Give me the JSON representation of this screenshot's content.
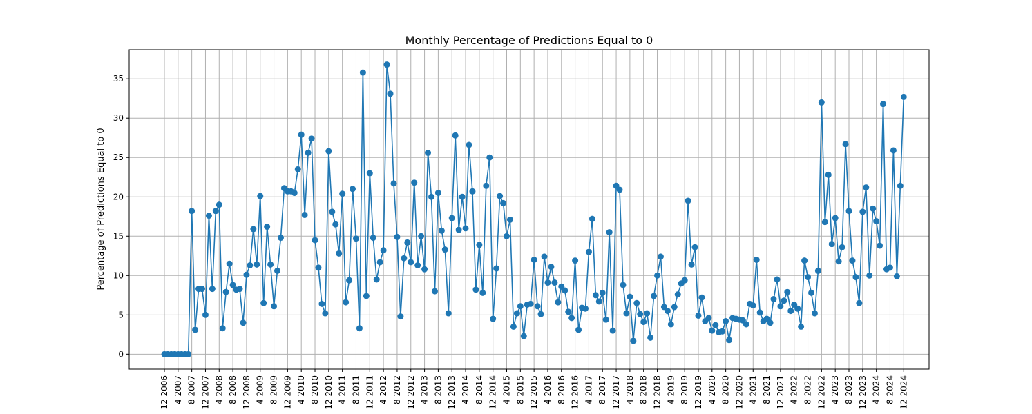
{
  "chart_data": {
    "type": "line",
    "title": "Monthly Percentage of Predictions Equal to 0",
    "xlabel": "",
    "ylabel": "Percentage of Predictions Equal to 0",
    "ylim": [
      -1.9,
      38.7
    ],
    "y_ticks": [
      0,
      5,
      10,
      15,
      20,
      25,
      30,
      35
    ],
    "grid": true,
    "line_color": "#1f77b4",
    "x_start": "12 2006",
    "x_ticks": [
      "12 2006",
      "4 2007",
      "8 2007",
      "12 2007",
      "4 2008",
      "8 2008",
      "12 2008",
      "4 2009",
      "8 2009",
      "12 2009",
      "4 2010",
      "8 2010",
      "12 2010",
      "4 2011",
      "8 2011",
      "12 2011",
      "4 2012",
      "8 2012",
      "12 2012",
      "4 2013",
      "8 2013",
      "12 2013",
      "4 2014",
      "8 2014",
      "12 2014",
      "4 2015",
      "8 2015",
      "12 2015",
      "4 2016",
      "8 2016",
      "12 2016",
      "4 2017",
      "8 2017",
      "12 2017",
      "4 2018",
      "8 2018",
      "12 2018",
      "4 2019",
      "8 2019",
      "12 2019",
      "4 2020",
      "8 2020",
      "12 2020",
      "4 2021",
      "8 2021",
      "12 2021",
      "4 2022",
      "8 2022",
      "12 2022",
      "4 2023",
      "8 2023",
      "12 2023",
      "4 2024",
      "8 2024",
      "12 2024"
    ],
    "values": [
      0,
      0,
      0,
      0,
      0,
      0,
      0,
      0,
      18.2,
      3.1,
      8.3,
      8.3,
      5.0,
      17.6,
      8.3,
      18.2,
      19.0,
      3.3,
      7.9,
      11.5,
      8.8,
      8.2,
      8.3,
      4.0,
      10.1,
      11.3,
      15.9,
      11.4,
      20.1,
      6.5,
      16.2,
      11.4,
      6.1,
      10.6,
      14.8,
      21.1,
      20.7,
      20.7,
      20.5,
      23.5,
      27.9,
      17.7,
      25.6,
      27.4,
      14.5,
      11.0,
      6.4,
      5.2,
      25.8,
      18.1,
      16.5,
      12.8,
      20.4,
      6.6,
      9.4,
      21.0,
      14.7,
      3.3,
      35.8,
      7.4,
      23.0,
      14.8,
      9.5,
      11.7,
      13.2,
      36.8,
      33.1,
      21.7,
      14.9,
      4.8,
      12.2,
      14.2,
      11.7,
      21.8,
      11.3,
      15.0,
      10.8,
      25.6,
      20.0,
      8.0,
      20.5,
      15.7,
      13.3,
      5.2,
      17.3,
      27.8,
      15.8,
      20.0,
      16.0,
      26.6,
      20.7,
      8.2,
      13.9,
      7.8,
      21.4,
      25.0,
      4.5,
      10.9,
      20.1,
      19.2,
      15.0,
      17.1,
      3.5,
      5.2,
      6.1,
      2.3,
      6.3,
      6.4,
      12.0,
      6.1,
      5.1,
      12.4,
      9.1,
      11.1,
      9.1,
      6.6,
      8.6,
      8.1,
      5.4,
      4.6,
      11.9,
      3.1,
      5.9,
      5.8,
      13.0,
      17.2,
      7.5,
      6.7,
      7.8,
      4.4,
      15.5,
      3.0,
      21.4,
      20.9,
      8.8,
      5.2,
      7.3,
      1.7,
      6.5,
      5.1,
      4.1,
      5.2,
      2.1,
      7.4,
      10.0,
      12.4,
      6.0,
      5.5,
      3.8,
      6.0,
      7.6,
      9.0,
      9.4,
      19.5,
      11.4,
      13.6,
      4.9,
      7.2,
      4.2,
      4.6,
      3.0,
      3.7,
      2.8,
      2.9,
      4.2,
      1.8,
      4.6,
      4.5,
      4.4,
      4.3,
      3.8,
      6.4,
      6.2,
      12.0,
      5.3,
      4.2,
      4.5,
      4.0,
      7.0,
      9.5,
      6.1,
      6.8,
      7.9,
      5.5,
      6.3,
      5.8,
      3.5,
      11.9,
      9.8,
      7.8,
      5.2,
      10.6,
      32.0,
      16.8,
      22.8,
      14.0,
      17.3,
      11.8,
      13.6,
      26.7,
      18.2,
      11.9,
      9.8,
      6.5,
      18.1,
      21.2,
      10.0,
      18.5,
      16.9,
      13.8,
      31.8,
      10.8,
      11.0,
      25.9,
      9.9,
      21.4,
      32.7
    ]
  }
}
